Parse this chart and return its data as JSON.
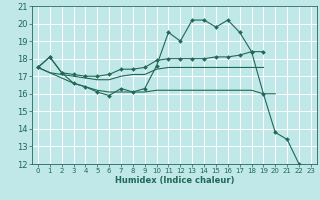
{
  "title": "",
  "xlabel": "Humidex (Indice chaleur)",
  "bg_color": "#c0e8e8",
  "grid_color": "#ffffff",
  "line_color": "#206858",
  "xlim": [
    -0.5,
    23.5
  ],
  "ylim": [
    12,
    21
  ],
  "xticks": [
    0,
    1,
    2,
    3,
    4,
    5,
    6,
    7,
    8,
    9,
    10,
    11,
    12,
    13,
    14,
    15,
    16,
    17,
    18,
    19,
    20,
    21,
    22,
    23
  ],
  "yticks": [
    12,
    13,
    14,
    15,
    16,
    17,
    18,
    19,
    20,
    21
  ],
  "series": [
    {
      "x": [
        0,
        1,
        2,
        3,
        4,
        5,
        6,
        7,
        8,
        9,
        10,
        11,
        12,
        13,
        14,
        15,
        16,
        17,
        18,
        19,
        20,
        21,
        22
      ],
      "y": [
        17.5,
        18.1,
        17.2,
        16.6,
        16.4,
        16.1,
        15.9,
        16.3,
        16.1,
        16.3,
        17.6,
        19.5,
        19.0,
        20.2,
        20.2,
        19.8,
        20.2,
        19.5,
        18.4,
        16.0,
        13.8,
        13.4,
        12.0
      ],
      "marker": true,
      "markersize": 2.0
    },
    {
      "x": [
        0,
        1,
        2,
        3,
        4,
        5,
        6,
        7,
        8,
        9,
        10,
        11,
        12,
        13,
        14,
        15,
        16,
        17,
        18,
        19
      ],
      "y": [
        17.5,
        18.1,
        17.2,
        17.1,
        17.0,
        17.0,
        17.1,
        17.4,
        17.4,
        17.5,
        17.9,
        18.0,
        18.0,
        18.0,
        18.0,
        18.1,
        18.1,
        18.2,
        18.4,
        18.4
      ],
      "marker": true,
      "markersize": 2.0
    },
    {
      "x": [
        0,
        1,
        2,
        3,
        4,
        5,
        6,
        7,
        8,
        9,
        10,
        11,
        12,
        13,
        14,
        15,
        16,
        17,
        18,
        19
      ],
      "y": [
        17.5,
        17.2,
        17.1,
        17.0,
        16.9,
        16.8,
        16.8,
        17.0,
        17.1,
        17.1,
        17.4,
        17.5,
        17.5,
        17.5,
        17.5,
        17.5,
        17.5,
        17.5,
        17.5,
        17.5
      ],
      "marker": false,
      "markersize": 0
    },
    {
      "x": [
        0,
        1,
        2,
        3,
        4,
        5,
        6,
        7,
        8,
        9,
        10,
        11,
        12,
        13,
        14,
        15,
        16,
        17,
        18,
        19,
        20
      ],
      "y": [
        17.5,
        17.2,
        16.9,
        16.6,
        16.4,
        16.2,
        16.1,
        16.1,
        16.1,
        16.1,
        16.2,
        16.2,
        16.2,
        16.2,
        16.2,
        16.2,
        16.2,
        16.2,
        16.2,
        16.0,
        16.0
      ],
      "marker": false,
      "markersize": 0
    }
  ]
}
